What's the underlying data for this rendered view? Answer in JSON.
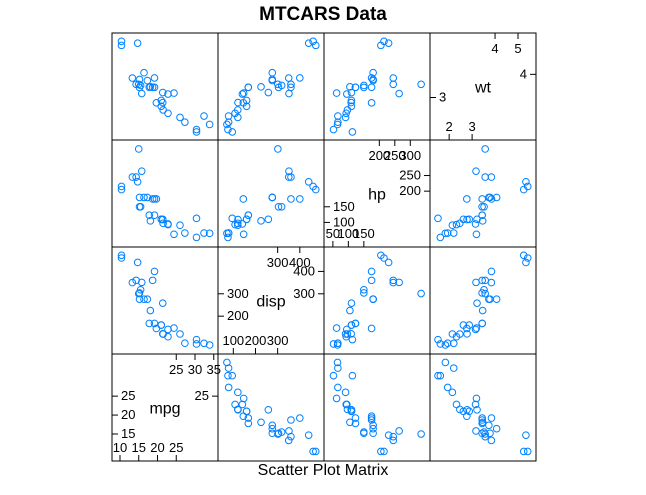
{
  "chart_data": {
    "type": "scatter",
    "subtype": "scatter-plot-matrix",
    "title": "MTCARS Data",
    "xlabel": "Scatter Plot Matrix",
    "point_color": "#0080ff",
    "variables": [
      {
        "name": "mpg",
        "range": [
          9.0,
          35.0
        ],
        "ticks_low": [
          10,
          15,
          20,
          25
        ],
        "ticks_high": [
          25,
          30,
          35
        ]
      },
      {
        "name": "disp",
        "range": [
          50,
          490
        ],
        "ticks_low": [
          100,
          200,
          300
        ],
        "ticks_high": [
          300,
          400
        ]
      },
      {
        "name": "hp",
        "range": [
          35,
          350
        ],
        "ticks_low": [
          50,
          100,
          150
        ],
        "ticks_high": [
          200,
          250,
          300
        ]
      },
      {
        "name": "wt",
        "range": [
          1.35,
          5.6
        ],
        "ticks_low": [
          2,
          3
        ],
        "ticks_high": [
          4,
          5
        ]
      }
    ],
    "data": {
      "mpg": [
        21.0,
        21.0,
        22.8,
        21.4,
        18.7,
        18.1,
        14.3,
        24.4,
        22.8,
        19.2,
        17.8,
        16.4,
        17.3,
        15.2,
        10.4,
        10.4,
        14.7,
        32.4,
        30.4,
        33.9,
        21.5,
        15.5,
        15.2,
        13.3,
        19.2,
        27.3,
        26.0,
        30.4,
        15.8,
        19.7,
        15.0,
        21.4
      ],
      "disp": [
        160,
        160,
        108,
        258,
        360,
        225,
        360,
        146.7,
        140.8,
        167.6,
        167.6,
        275.8,
        275.8,
        275.8,
        472,
        460,
        440,
        78.7,
        75.7,
        71.1,
        120.1,
        318,
        304,
        350,
        400,
        79,
        120.3,
        95.1,
        351,
        145,
        301,
        121
      ],
      "hp": [
        110,
        110,
        93,
        110,
        175,
        105,
        245,
        62,
        95,
        123,
        123,
        180,
        180,
        180,
        205,
        215,
        230,
        66,
        52,
        65,
        97,
        150,
        150,
        245,
        175,
        66,
        91,
        113,
        264,
        175,
        335,
        109
      ],
      "wt": [
        2.62,
        2.875,
        2.32,
        3.215,
        3.44,
        3.46,
        3.57,
        3.19,
        3.15,
        3.44,
        3.44,
        4.07,
        3.73,
        3.78,
        5.25,
        5.424,
        5.345,
        2.2,
        1.615,
        1.835,
        2.465,
        3.52,
        3.435,
        3.84,
        3.845,
        1.935,
        2.14,
        1.513,
        3.17,
        2.77,
        3.57,
        2.78
      ]
    }
  }
}
